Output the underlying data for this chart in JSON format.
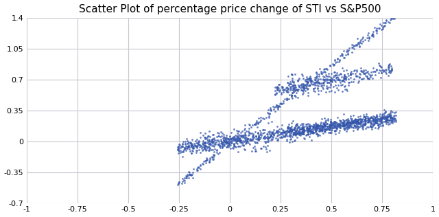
{
  "title": "Scatter Plot of percentage price change of STI vs S&P500",
  "xlim": [
    -1,
    1
  ],
  "ylim": [
    -0.7,
    1.4
  ],
  "xticks": [
    -1,
    -0.75,
    -0.5,
    -0.25,
    0,
    0.25,
    0.5,
    0.75,
    1
  ],
  "yticks": [
    -0.7,
    -0.35,
    0,
    0.35,
    0.7,
    1.05,
    1.4
  ],
  "dot_color": "#3355aa",
  "dot_size": 4,
  "dot_alpha": 0.75,
  "background_color": "#ffffff",
  "grid_color": "#c8c8d0",
  "title_fontsize": 11
}
